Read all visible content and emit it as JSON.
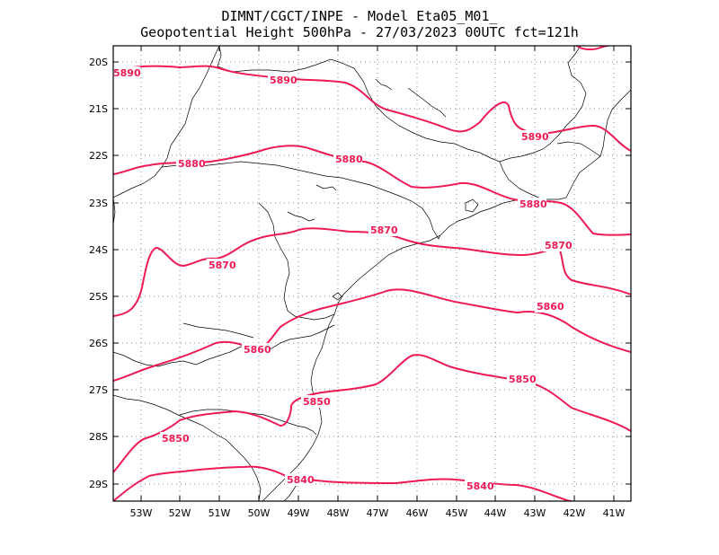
{
  "title": {
    "line1": "DIMNT/CGCT/INPE -  Model Eta05_M01_",
    "line2": "Geopotential Height 500hPa -  27/03/2023 00UTC fct=121h"
  },
  "colors": {
    "contour": "#ee1a55",
    "coast": "#000000",
    "grid": "#8a8a8a"
  },
  "lat_ticks": [
    "20S",
    "21S",
    "22S",
    "23S",
    "24S",
    "25S",
    "26S",
    "27S",
    "28S",
    "29S"
  ],
  "lon_ticks": [
    "53W",
    "52W",
    "51W",
    "50W",
    "49W",
    "48W",
    "47W",
    "46W",
    "45W",
    "44W",
    "43W",
    "42W",
    "41W"
  ],
  "contour_labels": [
    {
      "text": "5890",
      "pos": "west edge, 20.2S"
    },
    {
      "text": "5890",
      "pos": "50.8W 20.4S"
    },
    {
      "text": "5890",
      "pos": "43.0W 21.6S"
    },
    {
      "text": "5880",
      "pos": "52.0W 22.2S"
    },
    {
      "text": "5880",
      "pos": "47.8W 22.0S"
    },
    {
      "text": "5880",
      "pos": "43.0W 23.0S"
    },
    {
      "text": "5870",
      "pos": "46.8W 23.6S"
    },
    {
      "text": "5870",
      "pos": "51.1W 24.4S"
    },
    {
      "text": "5870",
      "pos": "42.3W 23.9S"
    },
    {
      "text": "5860",
      "pos": "50.1W 26.1S"
    },
    {
      "text": "5860",
      "pos": "42.5W 25.2S"
    },
    {
      "text": "5850",
      "pos": "48.6W 27.2S"
    },
    {
      "text": "5850",
      "pos": "44.0W 26.8S"
    },
    {
      "text": "5850",
      "pos": "52.1W 28.0S"
    },
    {
      "text": "5840",
      "pos": "48.7W 28.9S"
    },
    {
      "text": "5840",
      "pos": "44.8W 29.0S"
    }
  ]
}
